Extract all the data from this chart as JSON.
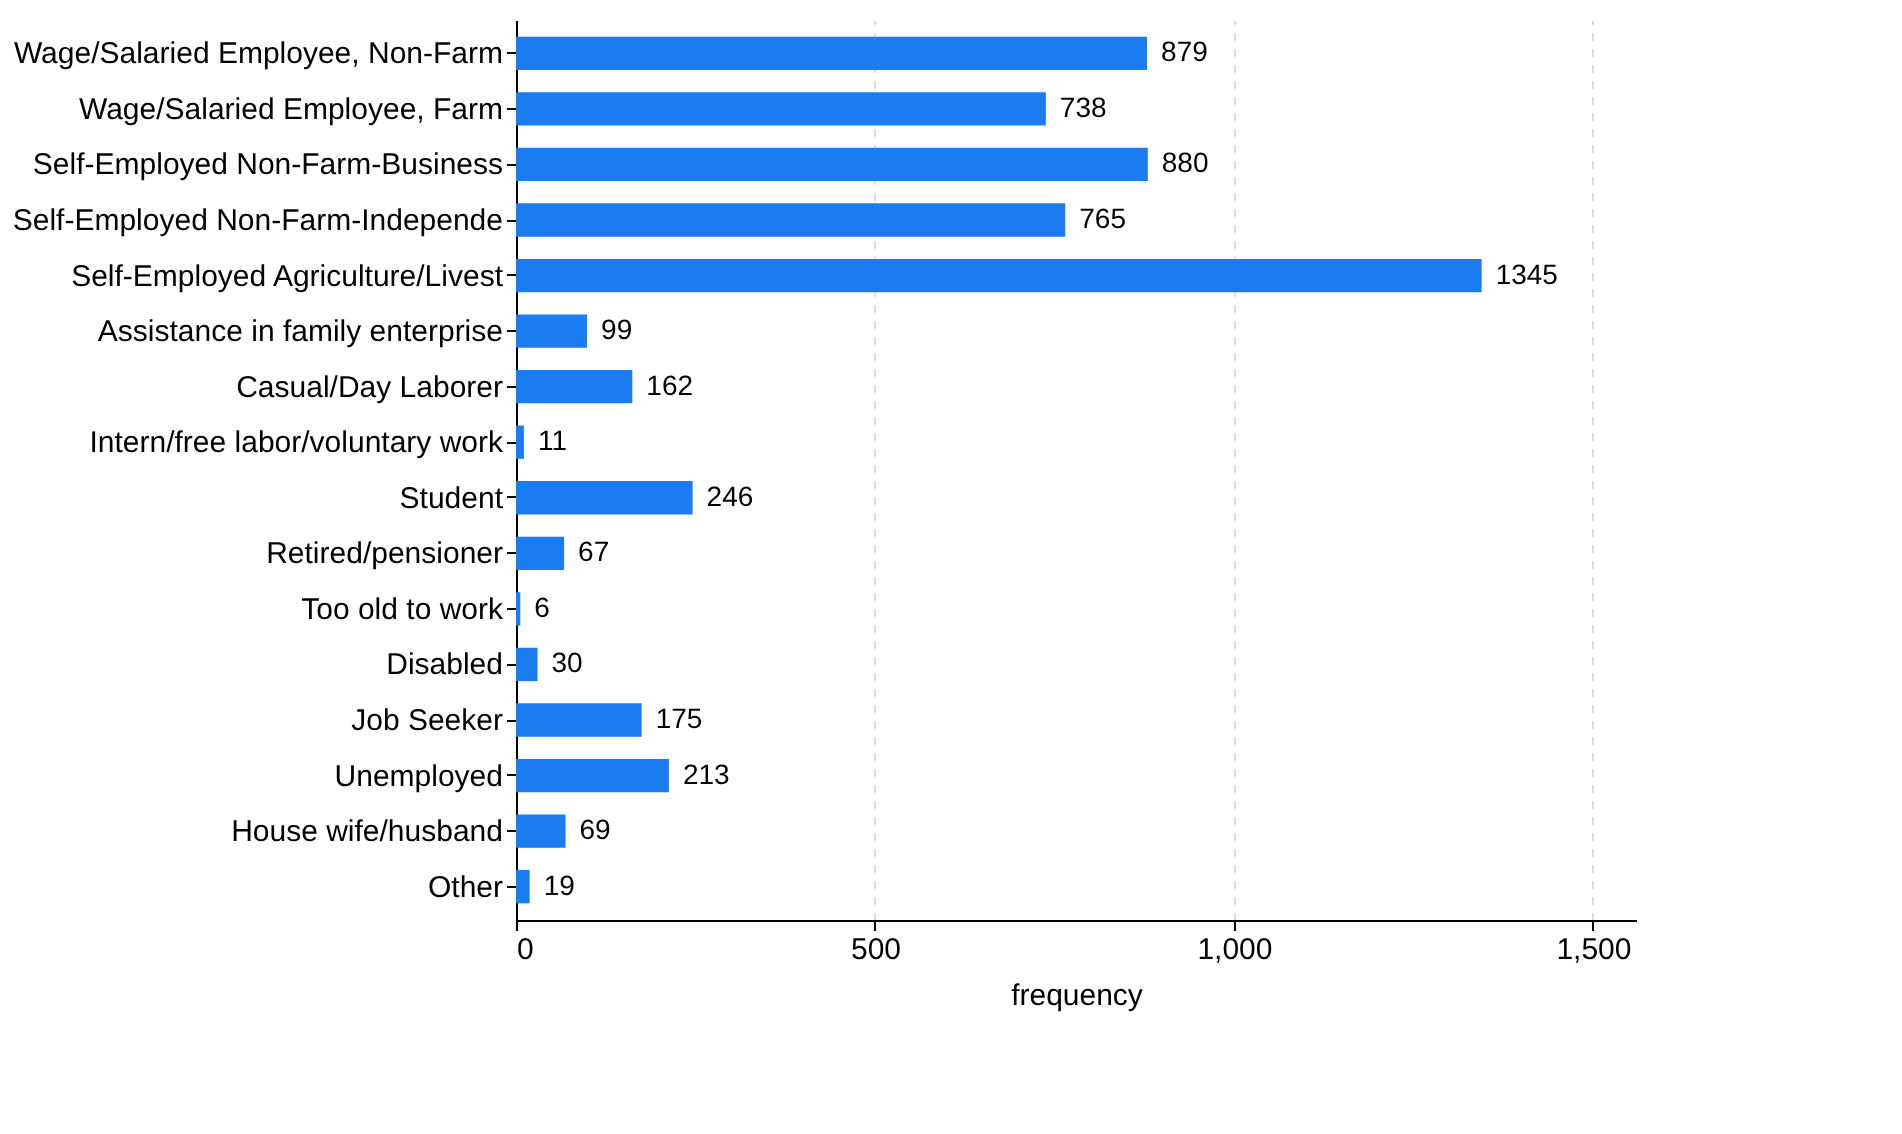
{
  "chart_data": {
    "type": "bar",
    "orientation": "horizontal",
    "xlabel": "frequency",
    "categories": [
      "Wage/Salaried Employee, Non-Farm",
      "Wage/Salaried Employee, Farm",
      "Self-Employed Non-Farm-Business",
      "Self-Employed Non-Farm-Independe",
      "Self-Employed Agriculture/Livest",
      "Assistance in family enterprise",
      "Casual/Day Laborer",
      "Intern/free labor/voluntary work",
      "Student",
      "Retired/pensioner",
      "Too old to work",
      "Disabled",
      "Job Seeker",
      "Unemployed",
      "House wife/husband",
      "Other"
    ],
    "values": [
      879,
      738,
      880,
      765,
      1345,
      99,
      162,
      11,
      246,
      67,
      6,
      30,
      175,
      213,
      69,
      19
    ],
    "color": "#1a7cf0",
    "data_labels": true,
    "xlim": [
      0,
      1560
    ],
    "xticks": [
      0,
      500,
      {
        "value": 1000,
        "label": "1,000"
      },
      {
        "value": 1500,
        "label": "1,500"
      }
    ],
    "grid": "x"
  }
}
